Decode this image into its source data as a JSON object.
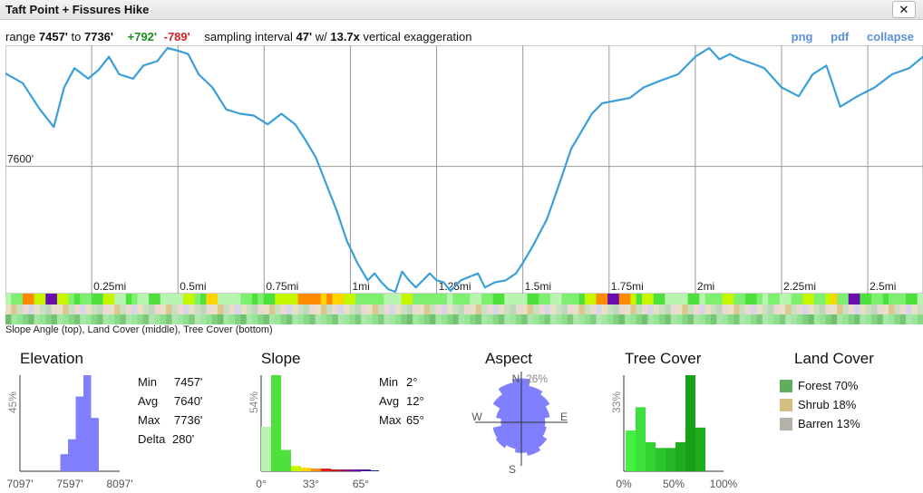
{
  "window": {
    "title": "Taft Point + Fissures Hike",
    "close_label": "✕"
  },
  "info": {
    "range_prefix": "range",
    "range_min": "7457'",
    "range_to": "to",
    "range_max": "7736'",
    "gain": "+792'",
    "loss": "-789'",
    "sampling_prefix": "sampling interval",
    "sampling_value": "47'",
    "w_label": "w/",
    "exaggeration_value": "13.7x",
    "exaggeration_suffix": "vertical exaggeration"
  },
  "links": {
    "png": "png",
    "pdf": "pdf",
    "collapse": "collapse"
  },
  "profile": {
    "y_label": "7600'",
    "x_tick_labels": [
      "0.25mi",
      "0.5mi",
      "0.75mi",
      "1mi",
      "1.25mi",
      "1.5mi",
      "1.75mi",
      "2mi",
      "2.25mi",
      "2.5mi"
    ],
    "line_color": "#3a9fd9"
  },
  "band_caption": "Slope Angle (top), Land Cover (middle), Tree Cover (bottom)",
  "chart_data": [
    {
      "type": "line",
      "title": "",
      "xlabel": "",
      "ylabel": "",
      "x_unit": "mi",
      "ylim": [
        7457,
        7736
      ],
      "xlim": [
        0,
        2.66
      ],
      "x": [
        0.0,
        0.05,
        0.1,
        0.14,
        0.17,
        0.2,
        0.24,
        0.27,
        0.3,
        0.33,
        0.37,
        0.4,
        0.44,
        0.47,
        0.5,
        0.53,
        0.56,
        0.6,
        0.64,
        0.68,
        0.72,
        0.76,
        0.8,
        0.84,
        0.87,
        0.9,
        0.93,
        0.96,
        0.99,
        1.02,
        1.05,
        1.07,
        1.09,
        1.11,
        1.13,
        1.15,
        1.17,
        1.19,
        1.21,
        1.23,
        1.25,
        1.27,
        1.29,
        1.32,
        1.35,
        1.37,
        1.39,
        1.42,
        1.45,
        1.48,
        1.5,
        1.53,
        1.57,
        1.61,
        1.64,
        1.67,
        1.7,
        1.73,
        1.77,
        1.81,
        1.85,
        1.9,
        1.95,
        2.0,
        2.04,
        2.07,
        2.1,
        2.13,
        2.16,
        2.2,
        2.25,
        2.3,
        2.34,
        2.38,
        2.42,
        2.47,
        2.52,
        2.57,
        2.62,
        2.66
      ],
      "series": [
        {
          "values": [
            7706,
            7695,
            7665,
            7645,
            7690,
            7712,
            7700,
            7710,
            7725,
            7705,
            7700,
            7715,
            7720,
            7735,
            7732,
            7728,
            7705,
            7690,
            7665,
            7660,
            7658,
            7648,
            7660,
            7648,
            7630,
            7610,
            7580,
            7550,
            7515,
            7490,
            7470,
            7478,
            7468,
            7460,
            7457,
            7480,
            7470,
            7462,
            7470,
            7478,
            7470,
            7468,
            7458,
            7470,
            7475,
            7478,
            7462,
            7468,
            7470,
            7478,
            7490,
            7510,
            7540,
            7585,
            7620,
            7640,
            7660,
            7672,
            7675,
            7678,
            7690,
            7698,
            7705,
            7725,
            7735,
            7722,
            7728,
            7722,
            7718,
            7712,
            7690,
            7680,
            7705,
            7715,
            7668,
            7680,
            7690,
            7705,
            7712,
            7725
          ]
        }
      ]
    },
    {
      "type": "bar",
      "title": "Elevation",
      "tick_labels": [
        "7097'",
        "7597'",
        "8097'"
      ],
      "y_tick_label": "45%",
      "categories": [
        "7450",
        "7500",
        "7550",
        "7600",
        "7650",
        "7700"
      ],
      "values": [
        0,
        8,
        15,
        35,
        45,
        25
      ]
    },
    {
      "type": "bar",
      "title": "Slope",
      "tick_labels": [
        "0°",
        "33°",
        "65°"
      ],
      "y_tick_label": "54%",
      "categories": [
        "0-5",
        "5-10",
        "10-15",
        "15-20",
        "20-25",
        "25-30",
        "30-35",
        "35-40",
        "40-45",
        "45-50",
        "50-55",
        "55-60",
        "60-65"
      ],
      "values": [
        25,
        54,
        12,
        3,
        2,
        1.5,
        1.5,
        1,
        1,
        1,
        1,
        0.5,
        0.5
      ]
    },
    {
      "type": "pie",
      "title": "Aspect",
      "max_label": "26%",
      "directions": [
        "N",
        "E",
        "S",
        "W"
      ],
      "categories": [
        "N",
        "NNE",
        "NE",
        "ENE",
        "E",
        "ESE",
        "SE",
        "SSE",
        "S",
        "SSW",
        "SW",
        "WSW",
        "W",
        "WNW",
        "NW",
        "NNW"
      ],
      "values": [
        26,
        22,
        20,
        17,
        14,
        15,
        18,
        20,
        18,
        16,
        18,
        17,
        12,
        15,
        20,
        24
      ]
    },
    {
      "type": "bar",
      "title": "Tree Cover",
      "tick_labels": [
        "0%",
        "50%",
        "100%"
      ],
      "y_tick_label": "33%",
      "categories": [
        "0-10",
        "10-20",
        "20-30",
        "30-40",
        "40-50",
        "50-60",
        "60-70",
        "70-80"
      ],
      "values": [
        14,
        22,
        10,
        8,
        8,
        10,
        33,
        15
      ]
    }
  ],
  "stats": {
    "elevation": {
      "min_label": "Min",
      "min": "7457'",
      "avg_label": "Avg",
      "avg": "7640'",
      "max_label": "Max",
      "max": "7736'",
      "delta_label": "Delta",
      "delta": "280'"
    },
    "slope": {
      "min_label": "Min",
      "min": "2°",
      "avg_label": "Avg",
      "avg": "12°",
      "max_label": "Max",
      "max": "65°"
    }
  },
  "land_cover": {
    "title": "Land Cover",
    "items": [
      {
        "label": "Forest 70%",
        "color": "#5fae5f"
      },
      {
        "label": "Shrub 18%",
        "color": "#d3bf82"
      },
      {
        "label": "Barren 13%",
        "color": "#b5b0a8"
      }
    ]
  },
  "colors": {
    "hist_elev": "#8080ff",
    "hist_slope": "#22dd22",
    "hist_tree": "#22cc22",
    "aspect": "#8080ff"
  }
}
